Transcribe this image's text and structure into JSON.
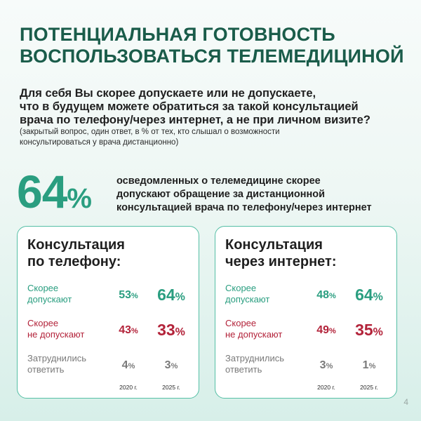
{
  "title": {
    "line1": "ПОТЕНЦИАЛЬНАЯ ГОТОВНОСТЬ",
    "line2": "ВОСПОЛЬЗОВАТЬСЯ ТЕЛЕМЕДИЦИНОЙ"
  },
  "question": {
    "line1": "Для себя Вы скорее допускаете или не допускаете,",
    "line2": "что в будущем можете обратиться за такой консультацией",
    "line3": "врача по телефону/через интернет, а не при личном визите?"
  },
  "note": {
    "line1": "(закрытый вопрос, один ответ, в % от тех, кто слышал о возможности",
    "line2": "консультироваться у врача дистанционно)"
  },
  "highlight": {
    "number": "64",
    "percent": "%",
    "line1": "осведомленных о телемедицине скорее",
    "line2": "допускают обращение за дистанционной",
    "line3": "консультацией врача по телефону/через интернет"
  },
  "colors": {
    "accent_green": "#2a9e80",
    "title_green": "#1a5c4a",
    "accent_red": "#b3233a",
    "muted_gray": "#7a7a7a"
  },
  "cards": [
    {
      "title_line1": "Консультация",
      "title_line2": "по телефону:",
      "rows": [
        {
          "label_line1": "Скорее",
          "label_line2": "допускают",
          "v2020": "53",
          "v2025": "64"
        },
        {
          "label_line1": "Скорее",
          "label_line2": "не допускают",
          "v2020": "43",
          "v2025": "33"
        },
        {
          "label_line1": "Затруднились",
          "label_line2": "ответить",
          "v2020": "4",
          "v2025": "3"
        }
      ],
      "year_a": "2020 г.",
      "year_b": "2025 г."
    },
    {
      "title_line1": "Консультация",
      "title_line2": "через интернет:",
      "rows": [
        {
          "label_line1": "Скорее",
          "label_line2": "допускают",
          "v2020": "48",
          "v2025": "64"
        },
        {
          "label_line1": "Скорее",
          "label_line2": "не допускают",
          "v2020": "49",
          "v2025": "35"
        },
        {
          "label_line1": "Затруднились",
          "label_line2": "ответить",
          "v2020": "3",
          "v2025": "1"
        }
      ],
      "year_a": "2020 г.",
      "year_b": "2025 г."
    }
  ],
  "percent_sign": "%",
  "page_number": "4"
}
